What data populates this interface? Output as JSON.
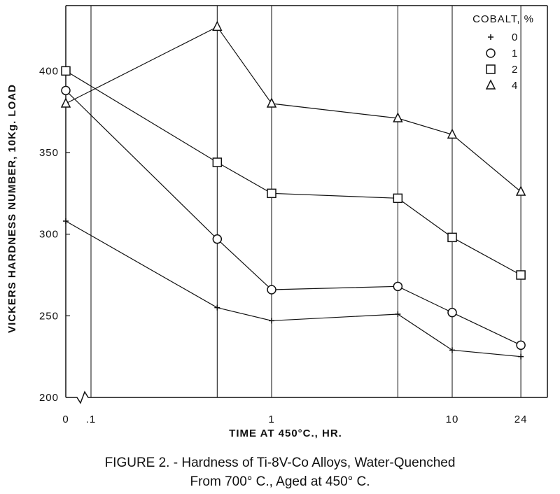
{
  "chart_data": {
    "type": "line",
    "ylabel": "VICKERS HARDNESS NUMBER, 10Kg. LOAD",
    "xlabel": "TIME AT 450°C., HR.",
    "ylim": [
      200,
      440
    ],
    "yticks": [
      200,
      250,
      300,
      350,
      400
    ],
    "x_scale": "log (0 shown at broken origin)",
    "xticks": [
      {
        "value": 0,
        "label": "0"
      },
      {
        "value": 0.1,
        "label": ".1"
      },
      {
        "value": 1,
        "label": "1"
      },
      {
        "value": 10,
        "label": "10"
      },
      {
        "value": 24,
        "label": "24"
      }
    ],
    "grid": true,
    "x": [
      0,
      0.5,
      1,
      5,
      10,
      24
    ],
    "legend": {
      "title": "COBALT, %",
      "placement": "top-right"
    },
    "series": [
      {
        "name": "0",
        "marker": "plus",
        "x": [
          0,
          0.5,
          1,
          5,
          10,
          24
        ],
        "values": [
          308,
          255,
          247,
          251,
          229,
          225
        ]
      },
      {
        "name": "1",
        "marker": "circle",
        "x": [
          0,
          0.5,
          1,
          5,
          10,
          24
        ],
        "values": [
          388,
          297,
          266,
          268,
          252,
          232
        ]
      },
      {
        "name": "2",
        "marker": "square",
        "x": [
          0,
          0.5,
          1,
          5,
          10,
          24
        ],
        "values": [
          400,
          344,
          325,
          322,
          298,
          275
        ]
      },
      {
        "name": "4",
        "marker": "triangle",
        "x": [
          0,
          0.5,
          1,
          5,
          10,
          24
        ],
        "values": [
          380,
          427,
          380,
          371,
          361,
          326
        ]
      }
    ]
  },
  "caption": {
    "line1": "FIGURE 2. - Hardness of Ti-8V-Co Alloys, Water-Quenched",
    "line2": "From 700° C., Aged at 450° C."
  }
}
